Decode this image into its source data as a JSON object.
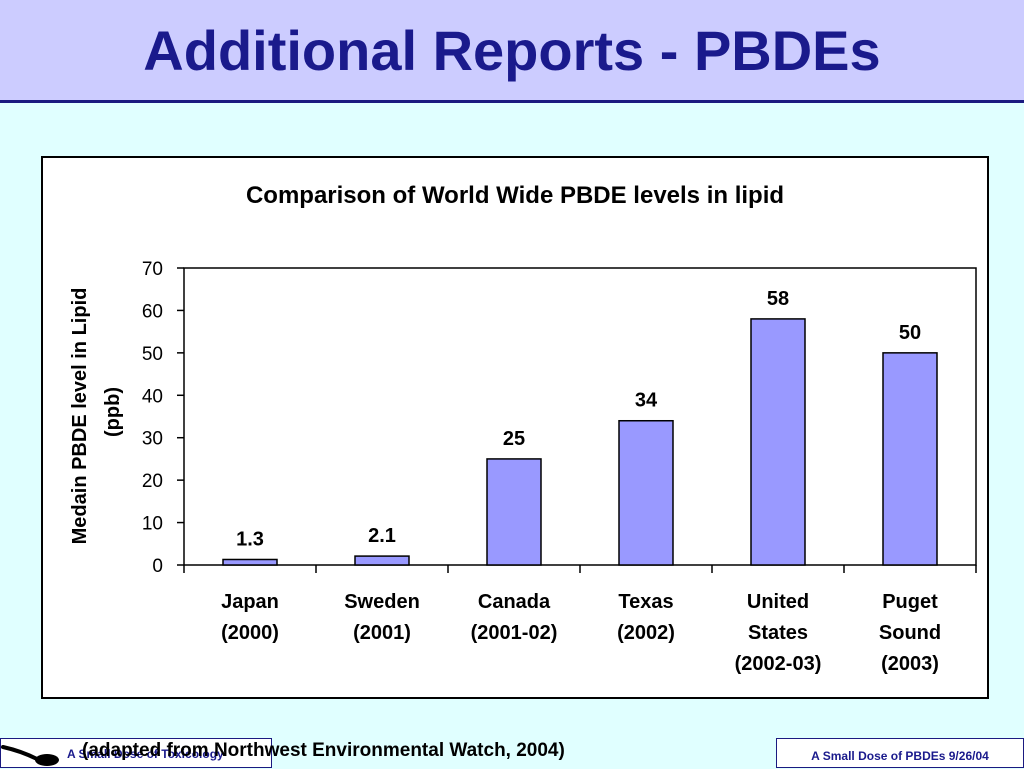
{
  "slide": {
    "title": "Additional Reports - PBDEs"
  },
  "footer": {
    "left_text": "A Small Dose of Toxicology",
    "credit": "(adapted from Northwest Environmental Watch, 2004)",
    "right_text": "A Small Dose of PBDEs 9/26/04"
  },
  "chart_data": {
    "type": "bar",
    "title": "Comparison of World Wide PBDE levels in lipid",
    "ylabel": [
      "Medain PBDE level in Lipid",
      "(ppb)"
    ],
    "xlabel": "",
    "ylim": [
      0,
      70
    ],
    "yticks": [
      0,
      10,
      20,
      30,
      40,
      50,
      60,
      70
    ],
    "categories": [
      [
        "Japan",
        "(2000)"
      ],
      [
        "Sweden",
        "(2001)"
      ],
      [
        "Canada",
        "(2001-02)"
      ],
      [
        "Texas",
        "(2002)"
      ],
      [
        "United",
        "States",
        "(2002-03)"
      ],
      [
        "Puget",
        "Sound",
        "(2003)"
      ]
    ],
    "values": [
      1.3,
      2.1,
      25,
      34,
      58,
      50
    ],
    "data_labels": [
      "1.3",
      "2.1",
      "25",
      "34",
      "58",
      "50"
    ],
    "bar_color": "#9999ff",
    "legend": "none",
    "grid": false
  }
}
